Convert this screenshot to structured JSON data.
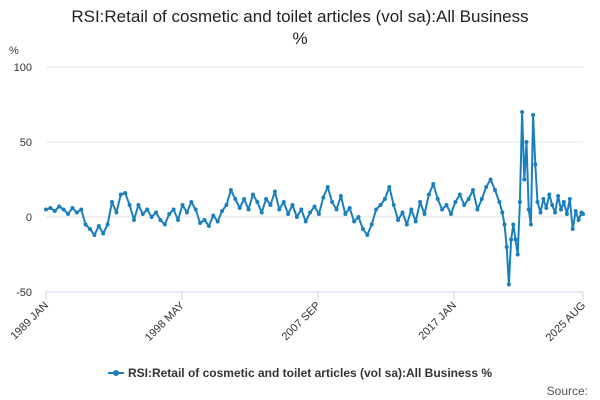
{
  "title": {
    "line1": "RSI:Retail of cosmetic and toilet articles (vol sa):All Business",
    "line2": "%"
  },
  "y_unit": "%",
  "legend_label": "RSI:Retail of cosmetic and toilet articles (vol sa):All Business %",
  "source_label": "Source:",
  "colors": {
    "series": "#1a7fbf",
    "grid": "#e6e6e6",
    "axis": "#ccd6eb"
  },
  "chart_data": {
    "type": "line",
    "title": "RSI:Retail of cosmetic and toilet articles (vol sa):All Business %",
    "xlabel": "",
    "ylabel": "%",
    "ylim": [
      -50,
      100
    ],
    "y_ticks": [
      "100",
      "50",
      "0",
      "-50"
    ],
    "x_tick_labels": [
      "1989 JAN",
      "1998 MAY",
      "2007 SEP",
      "2017 JAN",
      "2025 AUG"
    ],
    "grid": true,
    "legend_position": "bottom",
    "series": [
      {
        "name": "RSI:Retail of cosmetic and toilet articles (vol sa):All Business %",
        "points": [
          {
            "x": 1989.0,
            "y": 5
          },
          {
            "x": 1989.3,
            "y": 6
          },
          {
            "x": 1989.6,
            "y": 4
          },
          {
            "x": 1989.9,
            "y": 7
          },
          {
            "x": 1990.2,
            "y": 5
          },
          {
            "x": 1990.5,
            "y": 2
          },
          {
            "x": 1990.8,
            "y": 6
          },
          {
            "x": 1991.1,
            "y": 3
          },
          {
            "x": 1991.4,
            "y": 5
          },
          {
            "x": 1991.7,
            "y": -5
          },
          {
            "x": 1992.0,
            "y": -8
          },
          {
            "x": 1992.3,
            "y": -12
          },
          {
            "x": 1992.6,
            "y": -6
          },
          {
            "x": 1992.9,
            "y": -11
          },
          {
            "x": 1993.2,
            "y": -5
          },
          {
            "x": 1993.5,
            "y": 10
          },
          {
            "x": 1993.8,
            "y": 3
          },
          {
            "x": 1994.1,
            "y": 15
          },
          {
            "x": 1994.4,
            "y": 16
          },
          {
            "x": 1994.7,
            "y": 8
          },
          {
            "x": 1995.0,
            "y": -2
          },
          {
            "x": 1995.3,
            "y": 8
          },
          {
            "x": 1995.6,
            "y": 2
          },
          {
            "x": 1995.9,
            "y": 5
          },
          {
            "x": 1996.2,
            "y": 0
          },
          {
            "x": 1996.5,
            "y": 3
          },
          {
            "x": 1996.8,
            "y": -2
          },
          {
            "x": 1997.1,
            "y": -5
          },
          {
            "x": 1997.4,
            "y": 2
          },
          {
            "x": 1997.7,
            "y": 5
          },
          {
            "x": 1998.0,
            "y": -2
          },
          {
            "x": 1998.3,
            "y": 8
          },
          {
            "x": 1998.6,
            "y": 3
          },
          {
            "x": 1998.9,
            "y": 10
          },
          {
            "x": 1999.2,
            "y": 5
          },
          {
            "x": 1999.5,
            "y": -4
          },
          {
            "x": 1999.8,
            "y": -2
          },
          {
            "x": 2000.1,
            "y": -6
          },
          {
            "x": 2000.4,
            "y": 1
          },
          {
            "x": 2000.7,
            "y": -3
          },
          {
            "x": 2001.0,
            "y": 4
          },
          {
            "x": 2001.3,
            "y": 8
          },
          {
            "x": 2001.6,
            "y": 18
          },
          {
            "x": 2001.9,
            "y": 12
          },
          {
            "x": 2002.2,
            "y": 6
          },
          {
            "x": 2002.5,
            "y": 12
          },
          {
            "x": 2002.8,
            "y": 5
          },
          {
            "x": 2003.1,
            "y": 15
          },
          {
            "x": 2003.4,
            "y": 10
          },
          {
            "x": 2003.7,
            "y": 3
          },
          {
            "x": 2004.0,
            "y": 12
          },
          {
            "x": 2004.3,
            "y": 8
          },
          {
            "x": 2004.6,
            "y": 17
          },
          {
            "x": 2004.9,
            "y": 5
          },
          {
            "x": 2005.2,
            "y": 10
          },
          {
            "x": 2005.5,
            "y": 2
          },
          {
            "x": 2005.8,
            "y": 8
          },
          {
            "x": 2006.1,
            "y": 0
          },
          {
            "x": 2006.4,
            "y": 5
          },
          {
            "x": 2006.7,
            "y": -3
          },
          {
            "x": 2007.0,
            "y": 3
          },
          {
            "x": 2007.3,
            "y": 7
          },
          {
            "x": 2007.6,
            "y": 2
          },
          {
            "x": 2007.9,
            "y": 13
          },
          {
            "x": 2008.2,
            "y": 20
          },
          {
            "x": 2008.5,
            "y": 10
          },
          {
            "x": 2008.8,
            "y": 5
          },
          {
            "x": 2009.1,
            "y": 14
          },
          {
            "x": 2009.4,
            "y": 2
          },
          {
            "x": 2009.7,
            "y": 6
          },
          {
            "x": 2010.0,
            "y": -3
          },
          {
            "x": 2010.3,
            "y": 0
          },
          {
            "x": 2010.6,
            "y": -8
          },
          {
            "x": 2010.9,
            "y": -12
          },
          {
            "x": 2011.2,
            "y": -5
          },
          {
            "x": 2011.5,
            "y": 5
          },
          {
            "x": 2011.8,
            "y": 8
          },
          {
            "x": 2012.1,
            "y": 12
          },
          {
            "x": 2012.4,
            "y": 20
          },
          {
            "x": 2012.7,
            "y": 8
          },
          {
            "x": 2013.0,
            "y": -2
          },
          {
            "x": 2013.3,
            "y": 3
          },
          {
            "x": 2013.6,
            "y": -5
          },
          {
            "x": 2013.9,
            "y": 5
          },
          {
            "x": 2014.2,
            "y": -3
          },
          {
            "x": 2014.5,
            "y": 10
          },
          {
            "x": 2014.8,
            "y": 2
          },
          {
            "x": 2015.1,
            "y": 15
          },
          {
            "x": 2015.4,
            "y": 22
          },
          {
            "x": 2015.7,
            "y": 12
          },
          {
            "x": 2016.0,
            "y": 5
          },
          {
            "x": 2016.3,
            "y": 8
          },
          {
            "x": 2016.6,
            "y": 2
          },
          {
            "x": 2016.9,
            "y": 10
          },
          {
            "x": 2017.2,
            "y": 15
          },
          {
            "x": 2017.5,
            "y": 8
          },
          {
            "x": 2017.8,
            "y": 12
          },
          {
            "x": 2018.1,
            "y": 18
          },
          {
            "x": 2018.4,
            "y": 5
          },
          {
            "x": 2018.7,
            "y": 12
          },
          {
            "x": 2019.0,
            "y": 20
          },
          {
            "x": 2019.3,
            "y": 25
          },
          {
            "x": 2019.6,
            "y": 18
          },
          {
            "x": 2019.9,
            "y": 10
          },
          {
            "x": 2020.1,
            "y": 3
          },
          {
            "x": 2020.25,
            "y": -5
          },
          {
            "x": 2020.4,
            "y": -20
          },
          {
            "x": 2020.55,
            "y": -45
          },
          {
            "x": 2020.7,
            "y": -15
          },
          {
            "x": 2020.85,
            "y": -5
          },
          {
            "x": 2021.0,
            "y": -15
          },
          {
            "x": 2021.15,
            "y": -25
          },
          {
            "x": 2021.3,
            "y": 10
          },
          {
            "x": 2021.45,
            "y": 70
          },
          {
            "x": 2021.6,
            "y": 25
          },
          {
            "x": 2021.75,
            "y": 50
          },
          {
            "x": 2021.9,
            "y": 5
          },
          {
            "x": 2022.05,
            "y": -5
          },
          {
            "x": 2022.2,
            "y": 68
          },
          {
            "x": 2022.35,
            "y": 35
          },
          {
            "x": 2022.5,
            "y": 10
          },
          {
            "x": 2022.7,
            "y": 3
          },
          {
            "x": 2022.9,
            "y": 12
          },
          {
            "x": 2023.1,
            "y": 6
          },
          {
            "x": 2023.3,
            "y": 15
          },
          {
            "x": 2023.5,
            "y": 8
          },
          {
            "x": 2023.7,
            "y": 3
          },
          {
            "x": 2023.9,
            "y": 14
          },
          {
            "x": 2024.1,
            "y": 5
          },
          {
            "x": 2024.3,
            "y": 10
          },
          {
            "x": 2024.5,
            "y": 2
          },
          {
            "x": 2024.7,
            "y": 12
          },
          {
            "x": 2024.9,
            "y": -8
          },
          {
            "x": 2025.1,
            "y": 4
          },
          {
            "x": 2025.3,
            "y": -2
          },
          {
            "x": 2025.5,
            "y": 3
          },
          {
            "x": 2025.6,
            "y": 2
          }
        ]
      }
    ]
  }
}
